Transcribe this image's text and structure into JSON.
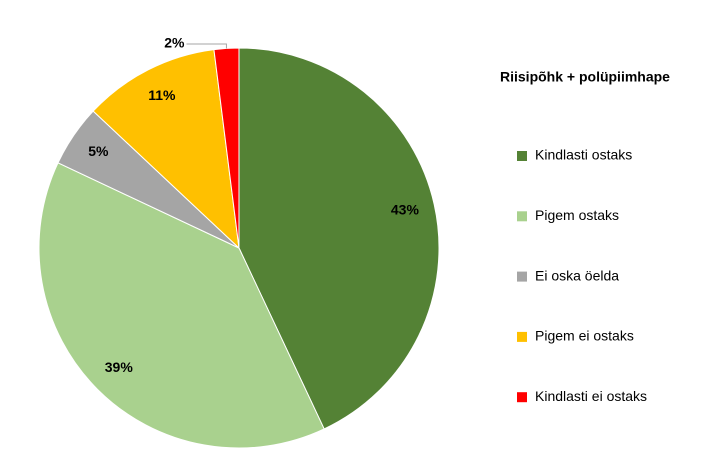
{
  "chart_data": {
    "type": "pie",
    "legend_title": "Riisipõhk + polüpiimhape",
    "categories": [
      "Kindlasti ostaks",
      "Pigem ostaks",
      "Ei oska öelda",
      "Pigem ei ostaks",
      "Kindlasti ei ostaks"
    ],
    "values": [
      43,
      39,
      5,
      11,
      2
    ],
    "value_labels": [
      "43%",
      "39%",
      "5%",
      "11%",
      "2%"
    ],
    "colors": [
      "#548235",
      "#a9d18e",
      "#a5a5a5",
      "#ffc000",
      "#ff0000"
    ],
    "legend": "right"
  }
}
